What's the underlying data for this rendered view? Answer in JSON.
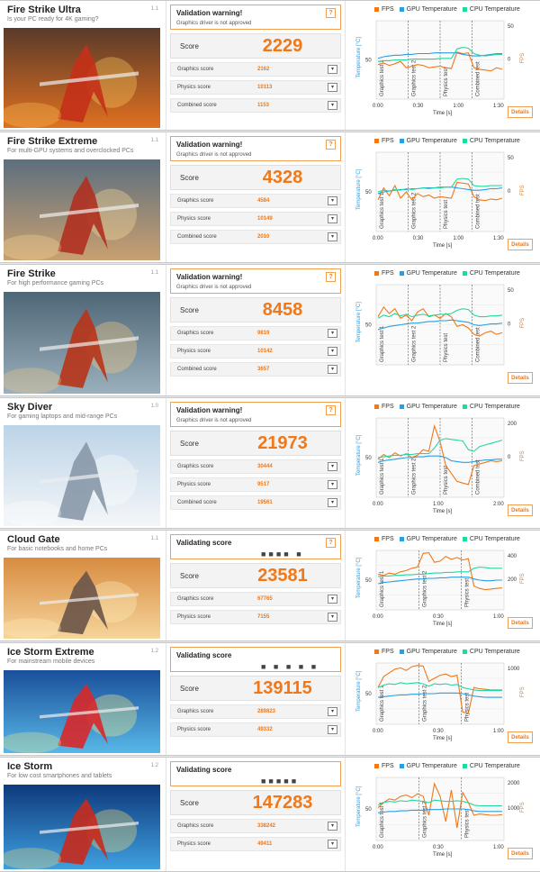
{
  "legend": {
    "fps": "FPS",
    "gpu": "GPU Temperature",
    "cpu": "CPU Temperature"
  },
  "colors": {
    "fps": "#f07818",
    "gpu": "#2a9ee0",
    "cpu": "#22d8a0",
    "accent": "#f07818"
  },
  "axis": {
    "y_left": "Temperature [°C]",
    "y_right": "FPS",
    "x": "Time [s]"
  },
  "details_label": "Details",
  "cards": [
    {
      "title": "Fire Strike Ultra",
      "subtitle": "Is your PC ready for 4K gaming?",
      "version": "1.1",
      "status": "Validation warning!",
      "status_detail": "Graphics driver is not approved",
      "status_dots": "",
      "status_help": "?",
      "score_label": "Score",
      "score": "2229",
      "subscores": [
        {
          "label": "Graphics score",
          "value": "2162"
        },
        {
          "label": "Physics score",
          "value": "10113"
        },
        {
          "label": "Combined score",
          "value": "1153"
        }
      ],
      "chart_data": {
        "type": "line",
        "x_ticks": [
          "0:00",
          "0:30",
          "1:00",
          "1:30"
        ],
        "y_left_ticks": [
          "50"
        ],
        "y_right_ticks": [
          "50",
          "0"
        ],
        "segments": [
          "Graphics test 1",
          "Graphics test 2",
          "Physics test",
          "Combined test"
        ],
        "series": [
          {
            "name": "FPS",
            "values": [
              44,
              46,
              43,
              45,
              48,
              40,
              42,
              44,
              43,
              40,
              41,
              42,
              40,
              39,
              60,
              58,
              59,
              40,
              38,
              37,
              36,
              40,
              38
            ]
          },
          {
            "name": "GPU Temperature",
            "values": [
              52,
              54,
              55,
              56,
              56,
              57,
              57,
              58,
              58,
              58,
              59,
              59,
              59,
              59,
              59,
              57,
              56,
              55,
              55,
              56,
              57,
              58,
              58
            ]
          },
          {
            "name": "CPU Temperature",
            "values": [
              48,
              49,
              49,
              50,
              50,
              50,
              51,
              51,
              51,
              51,
              51,
              52,
              52,
              52,
              64,
              66,
              65,
              58,
              56,
              55,
              56,
              57,
              57
            ]
          }
        ]
      }
    },
    {
      "title": "Fire Strike Extreme",
      "subtitle": "For multi-GPU systems and overclocked PCs",
      "version": "1.1",
      "status": "Validation warning!",
      "status_detail": "Graphics driver is not approved",
      "status_dots": "",
      "status_help": "?",
      "score_label": "Score",
      "score": "4328",
      "subscores": [
        {
          "label": "Graphics score",
          "value": "4584"
        },
        {
          "label": "Physics score",
          "value": "10149"
        },
        {
          "label": "Combined score",
          "value": "2010"
        }
      ],
      "chart_data": {
        "type": "line",
        "x_ticks": [
          "0:00",
          "0:30",
          "1:00",
          "1:30"
        ],
        "y_left_ticks": [
          "50"
        ],
        "y_right_ticks": [
          "50",
          "0"
        ],
        "segments": [
          "Graphics test 1",
          "Graphics test 2",
          "Physics test",
          "Combined test"
        ],
        "series": [
          {
            "name": "FPS",
            "values": [
              40,
              55,
              45,
              58,
              42,
              50,
              40,
              48,
              44,
              46,
              42,
              44,
              43,
              42,
              62,
              61,
              60,
              44,
              40,
              39,
              41,
              40,
              42
            ]
          },
          {
            "name": "GPU Temperature",
            "values": [
              48,
              50,
              51,
              52,
              53,
              53,
              54,
              54,
              55,
              55,
              55,
              56,
              56,
              56,
              55,
              54,
              53,
              52,
              52,
              53,
              54,
              54,
              55
            ]
          },
          {
            "name": "CPU Temperature",
            "values": [
              50,
              52,
              51,
              53,
              52,
              54,
              53,
              54,
              55,
              54,
              55,
              55,
              56,
              56,
              66,
              67,
              66,
              58,
              57,
              57,
              58,
              58,
              58
            ]
          }
        ]
      }
    },
    {
      "title": "Fire Strike",
      "subtitle": "For high performance gaming PCs",
      "version": "1.1",
      "status": "Validation warning!",
      "status_detail": "Graphics driver is not approved",
      "status_dots": "",
      "status_help": "?",
      "score_label": "Score",
      "score": "8458",
      "subscores": [
        {
          "label": "Graphics score",
          "value": "9819"
        },
        {
          "label": "Physics score",
          "value": "10142"
        },
        {
          "label": "Combined score",
          "value": "3657"
        }
      ],
      "chart_data": {
        "type": "line",
        "x_ticks": [],
        "y_left_ticks": [
          "50"
        ],
        "y_right_ticks": [
          "50",
          "0"
        ],
        "segments": [
          "Graphics test 1",
          "Graphics test 2",
          "Physics test",
          "Combined test"
        ],
        "series": [
          {
            "name": "FPS",
            "values": [
              60,
              72,
              64,
              70,
              58,
              62,
              55,
              66,
              70,
              60,
              62,
              58,
              64,
              60,
              48,
              50,
              46,
              38,
              36,
              40,
              42,
              38,
              40
            ]
          },
          {
            "name": "GPU Temperature",
            "values": [
              44,
              46,
              48,
              49,
              50,
              51,
              52,
              52,
              53,
              54,
              54,
              55,
              55,
              56,
              55,
              54,
              53,
              50,
              49,
              50,
              51,
              51,
              52
            ]
          },
          {
            "name": "CPU Temperature",
            "values": [
              58,
              62,
              60,
              64,
              61,
              63,
              60,
              62,
              63,
              61,
              62,
              63,
              63,
              64,
              68,
              70,
              69,
              62,
              60,
              60,
              61,
              61,
              62
            ]
          }
        ]
      }
    },
    {
      "title": "Sky Diver",
      "subtitle": "For gaming laptops and mid-range PCs",
      "version": "1.0",
      "status": "Validation warning!",
      "status_detail": "Graphics driver is not approved",
      "status_dots": "",
      "status_help": "?",
      "score_label": "Score",
      "score": "21973",
      "subscores": [
        {
          "label": "Graphics score",
          "value": "30444"
        },
        {
          "label": "Physics score",
          "value": "9517"
        },
        {
          "label": "Combined score",
          "value": "19561"
        }
      ],
      "chart_data": {
        "type": "line",
        "x_ticks": [
          "0:00",
          "1:00",
          "2:00"
        ],
        "y_left_ticks": [
          "50"
        ],
        "y_right_ticks": [
          "200",
          "0"
        ],
        "segments": [
          "Graphics test 1",
          "Graphics test 2",
          "Physics test",
          "Combined test"
        ],
        "series": [
          {
            "name": "FPS",
            "values": [
              48,
              54,
              50,
              56,
              52,
              55,
              50,
              53,
              60,
              58,
              90,
              70,
              40,
              30,
              20,
              18,
              16,
              40,
              42,
              44,
              46,
              45,
              46
            ]
          },
          {
            "name": "GPU Temperature",
            "values": [
              44,
              46,
              47,
              48,
              49,
              50,
              50,
              51,
              51,
              52,
              52,
              52,
              50,
              46,
              45,
              44,
              44,
              45,
              46,
              47,
              47,
              48,
              48
            ]
          },
          {
            "name": "CPU Temperature",
            "values": [
              50,
              51,
              52,
              53,
              53,
              54,
              54,
              55,
              55,
              55,
              62,
              72,
              74,
              73,
              72,
              71,
              60,
              58,
              64,
              66,
              68,
              70,
              72
            ]
          }
        ]
      }
    },
    {
      "title": "Cloud Gate",
      "subtitle": "For basic notebooks and home PCs",
      "version": "1.1",
      "status": "Validating score",
      "status_detail": "",
      "status_dots": "■■■■ ■",
      "status_help": "?",
      "score_label": "Score",
      "score": "23581",
      "subscores": [
        {
          "label": "Graphics score",
          "value": "67765"
        },
        {
          "label": "Physics score",
          "value": "7155"
        }
      ],
      "chart_data": {
        "type": "line",
        "x_ticks": [
          "0:00",
          "0:30",
          "1:00"
        ],
        "y_left_ticks": [
          "50"
        ],
        "y_right_ticks": [
          "400",
          "200"
        ],
        "segments": [
          "Graphics test 1",
          "Graphics test 2",
          "Physics test"
        ],
        "series": [
          {
            "name": "FPS",
            "values": [
              60,
              58,
              62,
              60,
              64,
              66,
              70,
              72,
              95,
              96,
              80,
              82,
              90,
              85,
              88,
              84,
              86,
              40,
              36,
              34,
              35,
              36,
              37
            ]
          },
          {
            "name": "GPU Temperature",
            "values": [
              44,
              46,
              47,
              48,
              49,
              50,
              51,
              52,
              52,
              53,
              53,
              54,
              54,
              55,
              55,
              55,
              55,
              52,
              50,
              49,
              49,
              50,
              50
            ]
          },
          {
            "name": "CPU Temperature",
            "values": [
              56,
              57,
              57,
              58,
              58,
              59,
              59,
              60,
              60,
              61,
              62,
              62,
              63,
              63,
              64,
              64,
              64,
              70,
              72,
              71,
              70,
              70,
              70
            ]
          }
        ]
      }
    },
    {
      "title": "Ice Storm Extreme",
      "subtitle": "For mainstream mobile devices",
      "version": "1.2",
      "status": "Validating score",
      "status_detail": "",
      "status_dots": "■ ■ ■ ■ ■",
      "status_help": "",
      "score_label": "Score",
      "score": "139115",
      "subscores": [
        {
          "label": "Graphics score",
          "value": "289823"
        },
        {
          "label": "Physics score",
          "value": "49332"
        }
      ],
      "chart_data": {
        "type": "line",
        "x_ticks": [
          "0:00",
          "0:30",
          "1:00"
        ],
        "y_left_ticks": [
          "50"
        ],
        "y_right_ticks": [
          "1000"
        ],
        "segments": [
          "Graphics test 1",
          "Graphics test 2",
          "Physics test"
        ],
        "series": [
          {
            "name": "FPS",
            "values": [
              60,
              78,
              84,
              90,
              92,
              88,
              94,
              96,
              95,
              70,
              75,
              80,
              82,
              78,
              80,
              20,
              18,
              60,
              58,
              57,
              56,
              56,
              56
            ]
          },
          {
            "name": "GPU Temperature",
            "values": [
              44,
              45,
              46,
              47,
              48,
              48,
              49,
              49,
              50,
              50,
              50,
              51,
              51,
              51,
              51,
              50,
              48,
              46,
              45,
              44,
              44,
              44,
              44
            ]
          },
          {
            "name": "CPU Temperature",
            "values": [
              60,
              64,
              66,
              65,
              68,
              66,
              67,
              68,
              66,
              62,
              66,
              65,
              66,
              64,
              65,
              60,
              58,
              56,
              55,
              55,
              55,
              55,
              55
            ]
          }
        ]
      }
    },
    {
      "title": "Ice Storm",
      "subtitle": "For low cost smartphones and tablets",
      "version": "1.2",
      "status": "Validating score",
      "status_detail": "",
      "status_dots": "■■■■■",
      "status_help": "",
      "score_label": "Score",
      "score": "147283",
      "subscores": [
        {
          "label": "Graphics score",
          "value": "338242"
        },
        {
          "label": "Physics score",
          "value": "49411"
        }
      ],
      "chart_data": {
        "type": "line",
        "x_ticks": [
          "0:00",
          "0:30",
          "1:00"
        ],
        "y_left_ticks": [
          "50"
        ],
        "y_right_ticks": [
          "2000",
          "1000"
        ],
        "segments": [
          "Graphics test 1",
          "Graphics test 2",
          "Physics test"
        ],
        "series": [
          {
            "name": "FPS",
            "values": [
              52,
              60,
              66,
              64,
              70,
              72,
              68,
              74,
              70,
              40,
              90,
              70,
              30,
              80,
              20,
              76,
              60,
              40,
              42,
              41,
              40,
              40,
              41
            ]
          },
          {
            "name": "GPU Temperature",
            "values": [
              44,
              45,
              46,
              46,
              47,
              47,
              48,
              48,
              48,
              49,
              49,
              49,
              50,
              50,
              50,
              50,
              49,
              47,
              46,
              46,
              46,
              46,
              46
            ]
          },
          {
            "name": "CPU Temperature",
            "values": [
              56,
              60,
              62,
              61,
              63,
              62,
              64,
              63,
              62,
              60,
              64,
              63,
              62,
              62,
              63,
              62,
              60,
              56,
              55,
              55,
              55,
              55,
              55
            ]
          }
        ]
      }
    }
  ]
}
